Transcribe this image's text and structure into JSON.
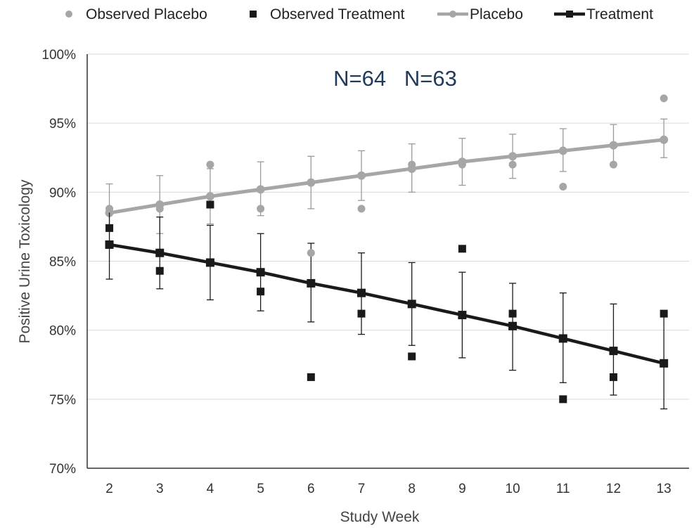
{
  "chart_data": {
    "type": "line",
    "xlabel": "Study Week",
    "ylabel": "Positive Urine Toxicology",
    "x": [
      2,
      3,
      4,
      5,
      6,
      7,
      8,
      9,
      10,
      11,
      12,
      13
    ],
    "ylim": [
      70,
      100
    ],
    "yticks": [
      "70%",
      "75%",
      "80%",
      "85%",
      "90%",
      "95%",
      "100%"
    ],
    "grid": "horizontal",
    "legend_position": "top",
    "annotation": "N=64   N=63",
    "series": [
      {
        "name": "Observed Placebo",
        "kind": "observed",
        "marker": "circle",
        "color": "#a6a6a6",
        "values": [
          88.8,
          88.8,
          92.0,
          88.8,
          85.6,
          88.8,
          92.0,
          92.0,
          92.0,
          90.4,
          92.0,
          96.8
        ]
      },
      {
        "name": "Observed Treatment",
        "kind": "observed",
        "marker": "square",
        "color": "#1a1a1a",
        "values": [
          87.4,
          84.3,
          89.1,
          82.8,
          76.6,
          81.2,
          78.1,
          85.9,
          81.2,
          75.0,
          76.6,
          81.2
        ]
      },
      {
        "name": "Placebo",
        "kind": "fitted",
        "marker": "circle",
        "color": "#a6a6a6",
        "values": [
          88.5,
          89.1,
          89.7,
          90.2,
          90.7,
          91.2,
          91.7,
          92.2,
          92.6,
          93.0,
          93.4,
          93.8
        ],
        "error_low": [
          86.2,
          87.0,
          87.7,
          88.3,
          88.8,
          89.4,
          90.0,
          90.5,
          91.0,
          91.5,
          92.0,
          92.5
        ],
        "error_high": [
          90.6,
          91.2,
          91.7,
          92.2,
          92.6,
          93.0,
          93.5,
          93.9,
          94.2,
          94.6,
          94.9,
          95.3
        ]
      },
      {
        "name": "Treatment",
        "kind": "fitted",
        "marker": "square",
        "color": "#1a1a1a",
        "values": [
          86.2,
          85.6,
          84.9,
          84.2,
          83.4,
          82.7,
          81.9,
          81.1,
          80.3,
          79.4,
          78.5,
          77.6
        ],
        "error_low": [
          83.7,
          83.0,
          82.2,
          81.4,
          80.6,
          79.7,
          78.9,
          78.0,
          77.1,
          76.2,
          75.3,
          74.3
        ],
        "error_high": [
          88.8,
          88.2,
          87.6,
          87.0,
          86.3,
          85.6,
          84.9,
          84.2,
          83.4,
          82.7,
          81.9,
          81.0
        ]
      }
    ]
  }
}
